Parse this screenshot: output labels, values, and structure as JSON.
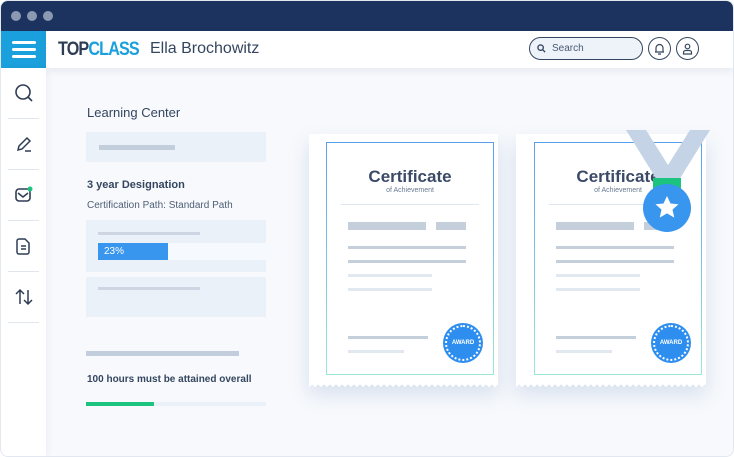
{
  "header": {
    "logo_top": "TOP",
    "logo_class": "CLASS",
    "user_name": "Ella Brochowitz",
    "search_placeholder": "Search"
  },
  "sidebar": {
    "items": [
      {
        "icon": "search-icon"
      },
      {
        "icon": "pencil-icon"
      },
      {
        "icon": "mail-icon",
        "badge": true
      },
      {
        "icon": "document-icon"
      },
      {
        "icon": "sort-arrows-icon"
      }
    ]
  },
  "main": {
    "section_title": "Learning Center",
    "designation": "3 year Designation",
    "path": "Certification Path: Standard Path",
    "progress_label": "23%",
    "progress": 23,
    "hours_text": "100 hours must be attained overall",
    "hours_progress": 38
  },
  "certificates": [
    {
      "title": "Certificate",
      "subtitle": "of Achievement",
      "seal": "AWARD"
    },
    {
      "title": "Certificate",
      "subtitle": "of Achievement",
      "seal": "AWARD",
      "medal": true
    }
  ],
  "colors": {
    "titlebar": "#1b335e",
    "accent": "#1aa0dc",
    "progress": "#3896ef",
    "hours": "#1cc47f"
  }
}
